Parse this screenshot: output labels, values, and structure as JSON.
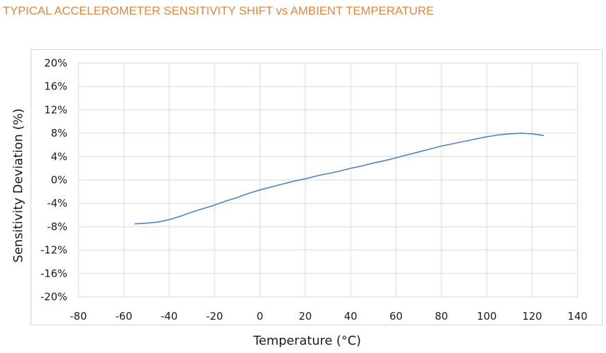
{
  "chart_data": {
    "type": "line",
    "title": "TYPICAL ACCELEROMETER SENSITIVITY SHIFT vs AMBIENT TEMPERATURE",
    "xlabel": "Temperature (°C)",
    "ylabel": "Sensitivity Deviation (%)",
    "xlim": [
      -80,
      140
    ],
    "ylim": [
      -20,
      20
    ],
    "x_ticks": [
      -80,
      -60,
      -40,
      -20,
      0,
      20,
      40,
      60,
      80,
      100,
      120,
      140
    ],
    "y_ticks": [
      20,
      16,
      12,
      8,
      4,
      0,
      -4,
      -8,
      -12,
      -16,
      -20
    ],
    "y_tick_suffix": "%",
    "grid": true,
    "legend": "none",
    "series": [
      {
        "color": "#4f81bd",
        "x": [
          -55,
          -50,
          -45,
          -40,
          -35,
          -30,
          -25,
          -20,
          -15,
          -10,
          -5,
          0,
          5,
          10,
          15,
          20,
          25,
          30,
          35,
          40,
          45,
          50,
          55,
          60,
          65,
          70,
          75,
          80,
          85,
          90,
          95,
          100,
          105,
          110,
          115,
          120,
          125
        ],
        "y": [
          -7.5,
          -7.4,
          -7.2,
          -6.8,
          -6.2,
          -5.5,
          -4.9,
          -4.3,
          -3.6,
          -3.0,
          -2.3,
          -1.7,
          -1.2,
          -0.7,
          -0.2,
          0.2,
          0.7,
          1.1,
          1.5,
          2.0,
          2.4,
          2.9,
          3.3,
          3.8,
          4.3,
          4.8,
          5.3,
          5.8,
          6.2,
          6.6,
          7.0,
          7.4,
          7.7,
          7.9,
          8.0,
          7.9,
          7.6
        ]
      }
    ]
  }
}
